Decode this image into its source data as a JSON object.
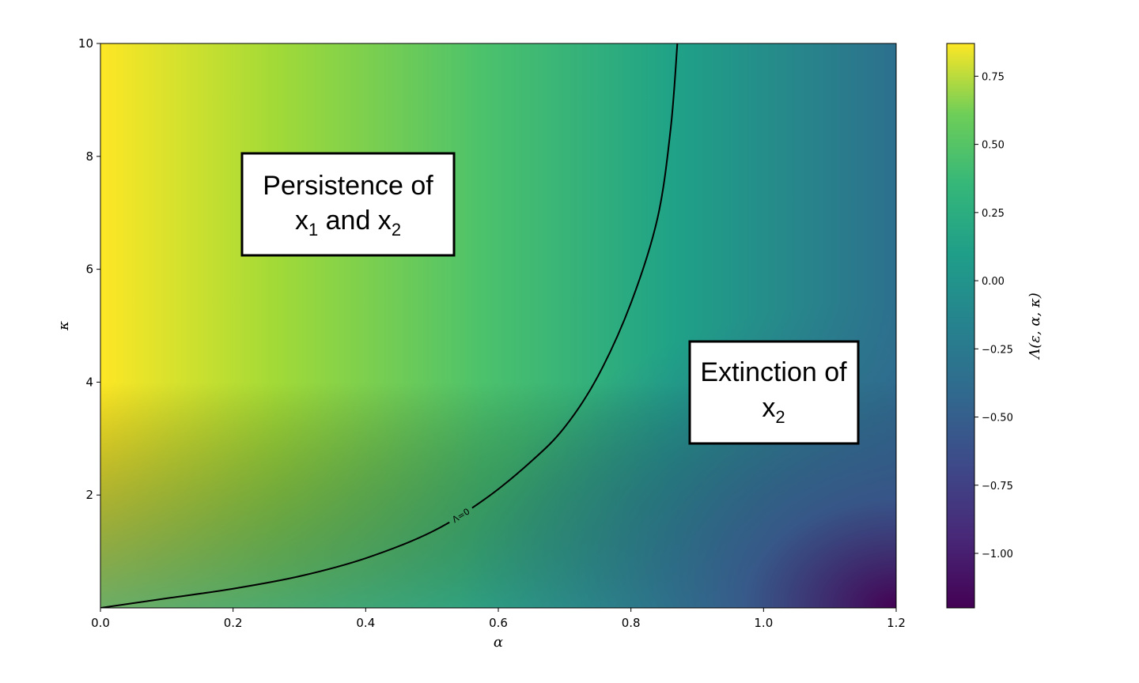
{
  "chart_data": {
    "type": "heatmap",
    "colormap": "viridis",
    "xlabel": "α",
    "ylabel": "κ",
    "xlim": [
      0.0,
      1.2
    ],
    "ylim": [
      0.0,
      10.0
    ],
    "xticks": [
      0.0,
      0.2,
      0.4,
      0.6,
      0.8,
      1.0,
      1.2
    ],
    "xtick_labels": [
      "0.0",
      "0.2",
      "0.4",
      "0.6",
      "0.8",
      "1.0",
      "1.2"
    ],
    "yticks": [
      2,
      4,
      6,
      8,
      10
    ],
    "ytick_labels": [
      "2",
      "4",
      "6",
      "8",
      "10"
    ],
    "colorbar": {
      "label": "Λ(ε, α, κ)",
      "range": [
        -1.2,
        0.87
      ],
      "ticks": [
        0.75,
        0.5,
        0.25,
        0.0,
        -0.25,
        -0.5,
        -0.75,
        -1.0
      ],
      "tick_labels": [
        "0.75",
        "0.50",
        "0.25",
        "0.00",
        "−0.25",
        "−0.50",
        "−0.75",
        "−1.00"
      ]
    },
    "field_samples": {
      "description_values": "Λ values at corners",
      "top_left": 0.87,
      "bottom_left": 0.0,
      "top_right": -0.45,
      "bottom_right": -1.2
    },
    "contour": {
      "label": "Λ=0",
      "level": 0,
      "points": [
        [
          0.0,
          0.0
        ],
        [
          0.1,
          0.17
        ],
        [
          0.2,
          0.34
        ],
        [
          0.3,
          0.56
        ],
        [
          0.4,
          0.88
        ],
        [
          0.5,
          1.35
        ],
        [
          0.58,
          1.93
        ],
        [
          0.65,
          2.6
        ],
        [
          0.7,
          3.2
        ],
        [
          0.75,
          4.1
        ],
        [
          0.8,
          5.4
        ],
        [
          0.84,
          6.9
        ],
        [
          0.86,
          8.5
        ],
        [
          0.87,
          10.0
        ]
      ]
    },
    "annotations": [
      {
        "line1": "Persistence of",
        "line2_parts": [
          "x",
          "1",
          " and x",
          "2"
        ]
      },
      {
        "line1": "Extinction of",
        "line2_parts": [
          "x",
          "2"
        ]
      }
    ]
  }
}
